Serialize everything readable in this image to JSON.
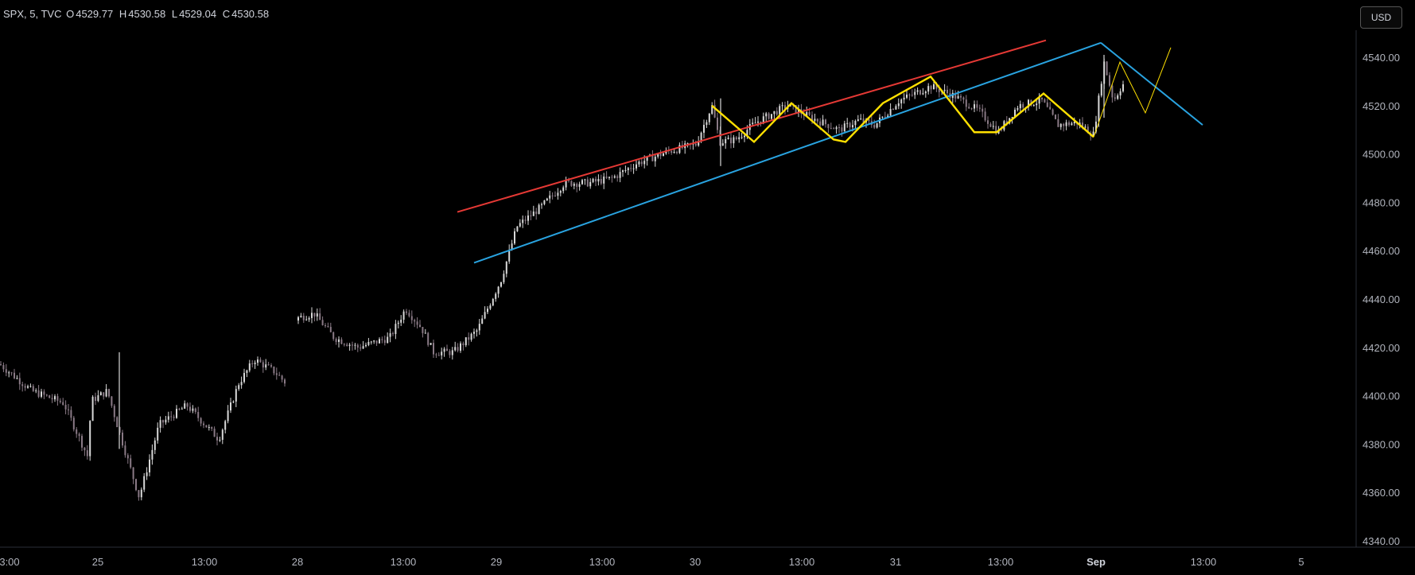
{
  "header": {
    "symbol": "SPX, 5, TVC",
    "open_label": "O",
    "open": "4529.77",
    "high_label": "H",
    "high": "4530.58",
    "low_label": "L",
    "low": "4529.04",
    "close_label": "C",
    "close": "4530.58"
  },
  "currency_button": "USD",
  "colors": {
    "background": "#000000",
    "candle_up": "#d9d9d9",
    "candle_down": "#8a7a86",
    "red_line": "#e53935",
    "blue_line": "#29a3e0",
    "yellow_line": "#ffe000",
    "axis_text": "#b2b5be",
    "axis_line": "#2a2e39"
  },
  "chart_data": {
    "type": "candlestick",
    "y_axis": {
      "min": 4340,
      "max": 4550,
      "ticks": [
        "4340.00",
        "4360.00",
        "4380.00",
        "4400.00",
        "4420.00",
        "4440.00",
        "4460.00",
        "4480.00",
        "4500.00",
        "4520.00",
        "4540.00"
      ]
    },
    "x_axis": {
      "labels": [
        {
          "text": "3:00",
          "bold": false
        },
        {
          "text": "25",
          "bold": false
        },
        {
          "text": "13:00",
          "bold": false
        },
        {
          "text": "28",
          "bold": false
        },
        {
          "text": "13:00",
          "bold": false
        },
        {
          "text": "29",
          "bold": false
        },
        {
          "text": "13:00",
          "bold": false
        },
        {
          "text": "30",
          "bold": false
        },
        {
          "text": "13:00",
          "bold": false
        },
        {
          "text": "31",
          "bold": false
        },
        {
          "text": "13:00",
          "bold": false
        },
        {
          "text": "Sep",
          "bold": true
        },
        {
          "text": "13:00",
          "bold": false
        },
        {
          "text": "5",
          "bold": false
        }
      ]
    },
    "price_path": [
      [
        0,
        4413
      ],
      [
        40,
        4402
      ],
      [
        80,
        4397
      ],
      [
        110,
        4375
      ],
      [
        115,
        4398
      ],
      [
        135,
        4402
      ],
      [
        150,
        4385
      ],
      [
        175,
        4358
      ],
      [
        200,
        4388
      ],
      [
        235,
        4396
      ],
      [
        275,
        4382
      ],
      [
        300,
        4405
      ],
      [
        320,
        4415
      ],
      [
        345,
        4410
      ],
      [
        360,
        4405
      ],
      [
        372,
        4432
      ],
      [
        395,
        4434
      ],
      [
        420,
        4424
      ],
      [
        450,
        4420
      ],
      [
        490,
        4424
      ],
      [
        510,
        4436
      ],
      [
        530,
        4428
      ],
      [
        545,
        4418
      ],
      [
        570,
        4418
      ],
      [
        600,
        4427
      ],
      [
        630,
        4448
      ],
      [
        650,
        4470
      ],
      [
        680,
        4478
      ],
      [
        710,
        4488
      ],
      [
        740,
        4488
      ],
      [
        770,
        4490
      ],
      [
        800,
        4496
      ],
      [
        840,
        4501
      ],
      [
        875,
        4504
      ],
      [
        895,
        4520
      ],
      [
        905,
        4505
      ],
      [
        925,
        4506
      ],
      [
        950,
        4513
      ],
      [
        990,
        4520
      ],
      [
        1020,
        4515
      ],
      [
        1055,
        4510
      ],
      [
        1080,
        4514
      ],
      [
        1100,
        4512
      ],
      [
        1130,
        4522
      ],
      [
        1170,
        4528
      ],
      [
        1200,
        4524
      ],
      [
        1230,
        4518
      ],
      [
        1255,
        4509
      ],
      [
        1280,
        4520
      ],
      [
        1310,
        4522
      ],
      [
        1330,
        4512
      ],
      [
        1355,
        4513
      ],
      [
        1375,
        4508
      ],
      [
        1388,
        4538
      ],
      [
        1400,
        4522
      ],
      [
        1410,
        4528
      ],
      [
        1415,
        4530
      ]
    ],
    "trend_lines": [
      {
        "color": "red",
        "from": [
          575,
          4476
        ],
        "to": [
          1315,
          4547
        ]
      },
      {
        "color": "blue",
        "from": [
          596,
          4455
        ],
        "to": [
          1384,
          4546
        ]
      },
      {
        "color": "blue",
        "from": [
          1384,
          4546
        ],
        "to": [
          1512,
          4512
        ]
      }
    ],
    "zigzag": [
      [
        895,
        4520
      ],
      [
        948,
        4505
      ],
      [
        995,
        4521
      ],
      [
        1048,
        4506
      ],
      [
        1063,
        4505
      ],
      [
        1110,
        4521
      ],
      [
        1170,
        4532
      ],
      [
        1225,
        4509
      ],
      [
        1253,
        4509
      ],
      [
        1312,
        4525
      ],
      [
        1375,
        4507
      ]
    ],
    "projection": [
      [
        1375,
        4507
      ],
      [
        1408,
        4538
      ],
      [
        1440,
        4517
      ],
      [
        1472,
        4544
      ]
    ]
  }
}
